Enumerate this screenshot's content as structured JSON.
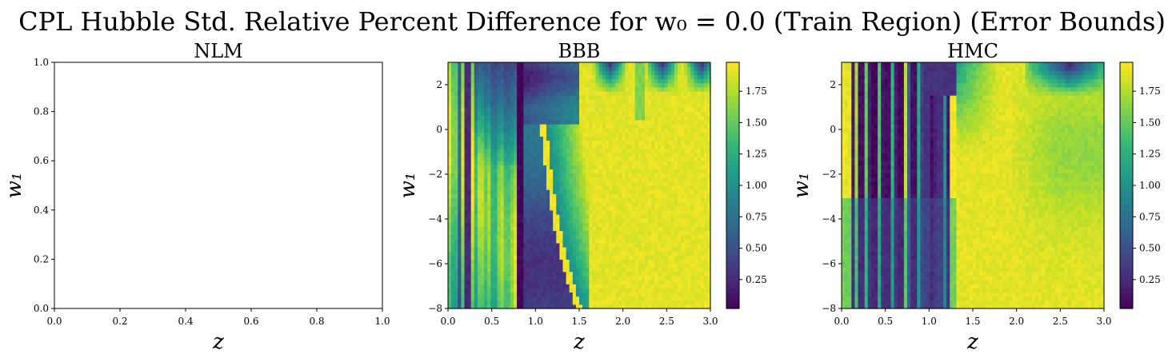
{
  "figure_title": "CPL Hubble Std. Relative Percent Difference for w₀ = 0.0 (Train Region) (Error Bounds)",
  "chart_data": [
    {
      "type": "heatmap",
      "title": "NLM",
      "xlabel": "z",
      "ylabel": "w₁",
      "xlim": [
        0.0,
        1.0
      ],
      "ylim": [
        0.0,
        1.0
      ],
      "xticks": [
        "0.0",
        "0.2",
        "0.4",
        "0.6",
        "0.8",
        "1.0"
      ],
      "yticks": [
        "0.0",
        "0.2",
        "0.4",
        "0.6",
        "0.8",
        "1.0"
      ],
      "empty": true
    },
    {
      "type": "heatmap",
      "title": "BBB",
      "xlabel": "z",
      "ylabel": "w₁",
      "xlim": [
        0.0,
        3.0
      ],
      "ylim": [
        -8,
        3
      ],
      "xticks": [
        "0.0",
        "0.5",
        "1.0",
        "1.5",
        "2.0",
        "2.5",
        "3.0"
      ],
      "yticks": [
        "−8",
        "−6",
        "−4",
        "−2",
        "0",
        "2"
      ],
      "colorbar": {
        "range": [
          0.02,
          1.98
        ],
        "ticks": [
          "0.25",
          "0.50",
          "0.75",
          "1.00",
          "1.25",
          "1.50",
          "1.75"
        ],
        "colormap": "viridis"
      }
    },
    {
      "type": "heatmap",
      "title": "HMC",
      "xlabel": "z",
      "ylabel": "w₁",
      "xlim": [
        0.0,
        3.0
      ],
      "ylim": [
        -8,
        3
      ],
      "xticks": [
        "0.0",
        "0.5",
        "1.0",
        "1.5",
        "2.0",
        "2.5",
        "3.0"
      ],
      "yticks": [
        "−8",
        "−6",
        "−4",
        "−2",
        "0",
        "2"
      ],
      "colorbar": {
        "range": [
          0.02,
          1.98
        ],
        "ticks": [
          "0.25",
          "0.50",
          "0.75",
          "1.00",
          "1.25",
          "1.50",
          "1.75"
        ],
        "colormap": "viridis"
      }
    }
  ]
}
